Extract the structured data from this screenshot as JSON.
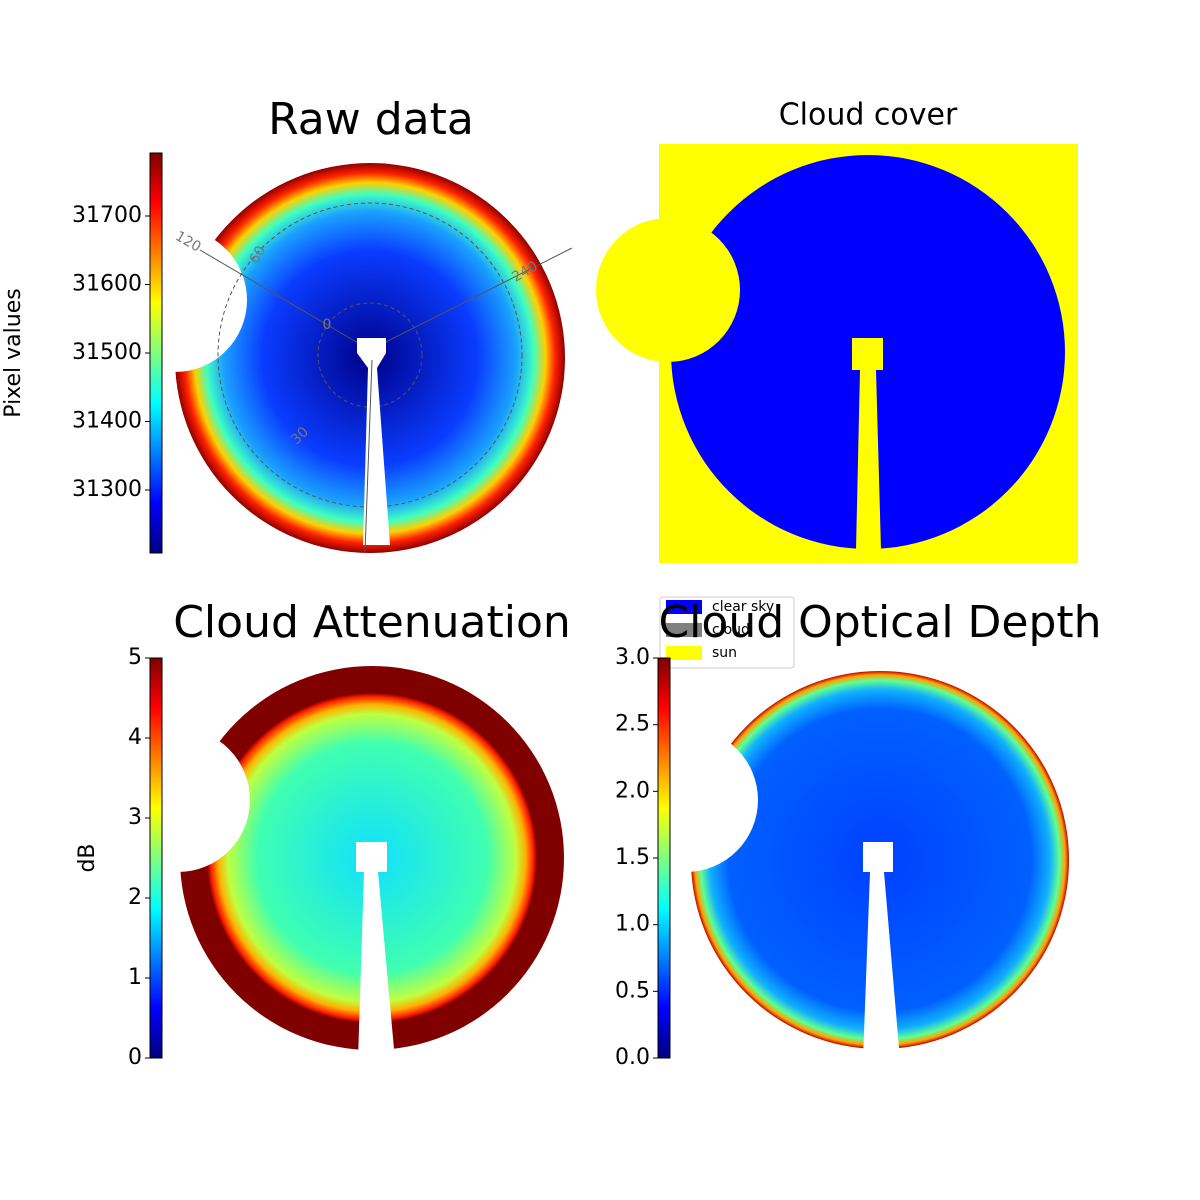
{
  "chart_data": [
    {
      "type": "image",
      "title": "Raw data",
      "colorbar_label": "Pixel values",
      "ylim": [
        31208,
        31792
      ],
      "yticks": [
        31300,
        31400,
        31500,
        31600,
        31700
      ],
      "annotations": [
        "120",
        "60",
        "0",
        "240",
        "30"
      ]
    },
    {
      "type": "image",
      "title": "Cloud cover",
      "legend": [
        {
          "name": "clear sky",
          "color": "#0000ff"
        },
        {
          "name": "cloud",
          "color": "#808080"
        },
        {
          "name": "sun",
          "color": "#ffff00"
        }
      ]
    },
    {
      "type": "image",
      "title": "Cloud Attenuation",
      "colorbar_label": "dB",
      "ylim": [
        0,
        5
      ],
      "yticks": [
        0,
        1,
        2,
        3,
        4,
        5
      ]
    },
    {
      "type": "image",
      "title": "Cloud Optical Depth",
      "ylim": [
        0,
        3
      ],
      "yticks": [
        {
          "value": 0,
          "label": "0.0"
        },
        {
          "value": 0.5,
          "label": "0.5"
        },
        {
          "value": 1,
          "label": "1.0"
        },
        {
          "value": 1.5,
          "label": "1.5"
        },
        {
          "value": 2,
          "label": "2.0"
        },
        {
          "value": 2.5,
          "label": "2.5"
        },
        {
          "value": 3,
          "label": "3.0"
        }
      ]
    }
  ]
}
